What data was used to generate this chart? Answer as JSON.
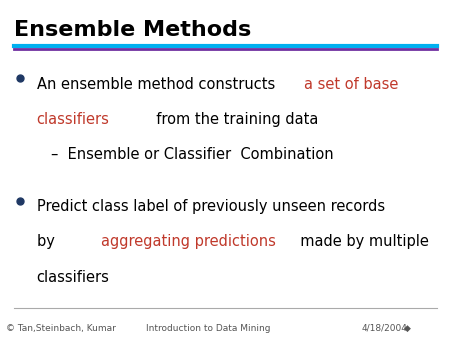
{
  "title": "Ensemble Methods",
  "title_color": "#000000",
  "title_fontsize": 16,
  "bg_color": "#ffffff",
  "line1_color": "#00b0f0",
  "line2_color": "#7030a0",
  "dot_color": "#1f3864",
  "orange_red": "#c0392b",
  "black": "#000000",
  "sub_bullet": "–  Ensemble or Classifier  Combination",
  "footer_left": "© Tan,Steinbach, Kumar",
  "footer_center": "Introduction to Data Mining",
  "footer_right": "4/18/2004",
  "footer_extra": "◆",
  "footer_color": "#555555",
  "footer_fontsize": 6.5,
  "body_fontsize": 10.5,
  "sub_fontsize": 10.5
}
